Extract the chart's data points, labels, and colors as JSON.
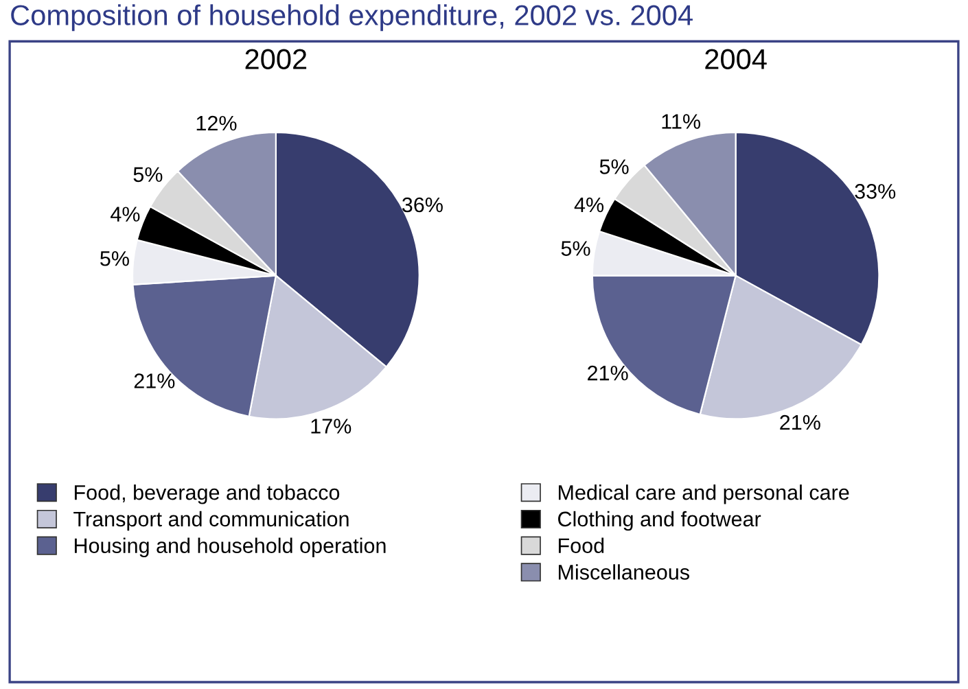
{
  "chart_data": [
    {
      "type": "other",
      "title": "Composition of household expenditure, 2002 vs. 2004"
    },
    {
      "type": "pie",
      "title": "2002",
      "legend": "bottom",
      "categories": [
        "Food, beverage and tobacco",
        "Transport and communication",
        "Housing and household operation",
        "Medical care and personal care",
        "Clothing and footwear",
        "Food",
        "Miscellaneous"
      ],
      "values": [
        36,
        17,
        21,
        5,
        4,
        5,
        12
      ],
      "value_labels": [
        "36%",
        "17%",
        "21%",
        "5%",
        "4%",
        "5%",
        "12%"
      ],
      "colors": [
        "#373d6e",
        "#c4c6d9",
        "#5b6190",
        "#ebecf2",
        "#000000",
        "#d9d9d9",
        "#8a8eae"
      ]
    },
    {
      "type": "pie",
      "title": "2004",
      "categories": [
        null,
        null,
        null,
        null,
        null,
        null,
        null
      ],
      "values": [
        33,
        21,
        21,
        5,
        4,
        5,
        11
      ],
      "value_labels": [
        "33%",
        "21%",
        "21%",
        "5%",
        "4%",
        "5%",
        "11%"
      ],
      "colors": [
        "#373d6e",
        "#c4c6d9",
        "#5b6190",
        "#ebecf2",
        "#000000",
        "#d9d9d9",
        "#8a8eae"
      ]
    }
  ]
}
